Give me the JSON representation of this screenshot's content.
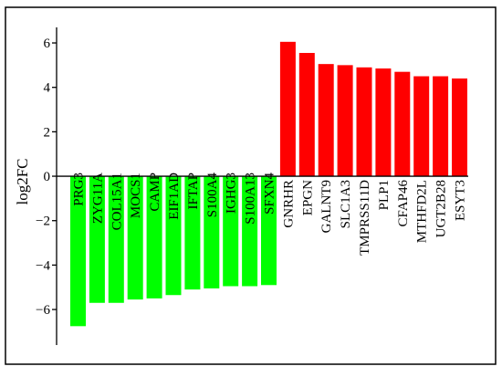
{
  "chart_data": {
    "type": "bar",
    "title": "",
    "xlabel": "",
    "ylabel": "log2FC",
    "ylim": [
      -7.6,
      6.7
    ],
    "yticks": [
      -6,
      -4,
      -2,
      0,
      2,
      4,
      6
    ],
    "ytick_labels": [
      "−6",
      "−4",
      "−2",
      "0",
      "2",
      "4",
      "6"
    ],
    "grid": false,
    "legend": "none",
    "categories": [
      "PRG3",
      "ZYG11A",
      "COL15A1",
      "MOCS1",
      "CAMP",
      "EIF1AD",
      "IFTAP",
      "S100A4",
      "IGHG3",
      "S100A13",
      "SFXN4",
      "GNRHR",
      "EPGN",
      "GALNT9",
      "SLC1A3",
      "TMPRSS11D",
      "PLP1",
      "CFAP46",
      "MTHFD2L",
      "UGT2B28",
      "ESYT3"
    ],
    "values": [
      -6.75,
      -5.7,
      -5.7,
      -5.55,
      -5.5,
      -5.35,
      -5.1,
      -5.05,
      -4.95,
      -4.95,
      -4.9,
      6.05,
      5.55,
      5.05,
      5.0,
      4.9,
      4.85,
      4.7,
      4.5,
      4.5,
      4.4
    ],
    "colors": {
      "negative": "#00ff00",
      "positive": "#ff0000",
      "axis": "#000000",
      "frame": "#000000"
    }
  }
}
